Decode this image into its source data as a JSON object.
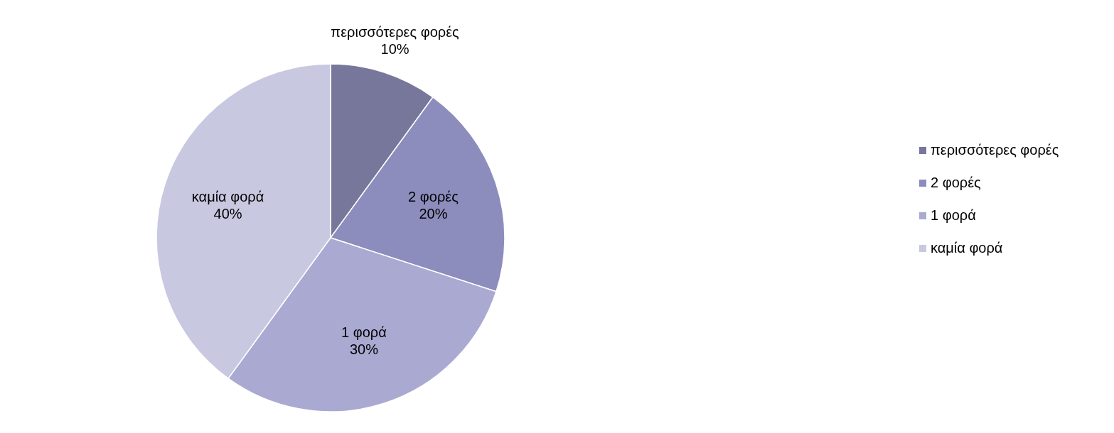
{
  "chart_data": {
    "type": "pie",
    "categories": [
      "περισσότερες φορές",
      "2 φορές",
      "1 φορά",
      "καμία φορά"
    ],
    "values": [
      10,
      20,
      30,
      40
    ],
    "value_labels": [
      "10%",
      "20%",
      "30%",
      "40%"
    ],
    "colors": [
      "#77779b",
      "#8c8cbd",
      "#a9a9d2",
      "#c8c8e0"
    ],
    "legend": "right"
  }
}
